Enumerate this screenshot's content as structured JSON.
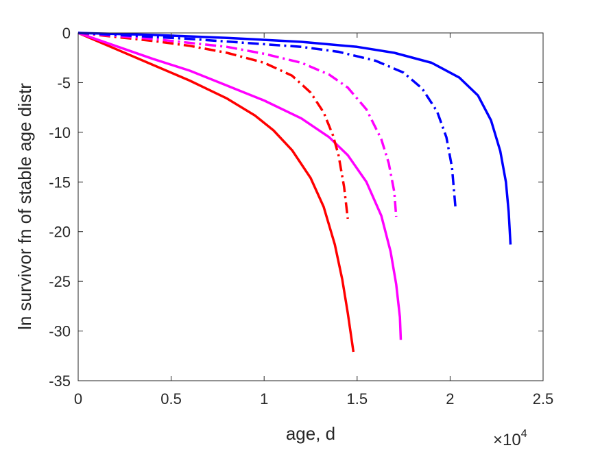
{
  "chart_data": {
    "type": "line",
    "xlabel": "age, d",
    "ylabel": "ln survivor fn of stable age distr",
    "x_exponent_label": {
      "base": "×10",
      "power": "4"
    },
    "xlim": [
      0,
      25000
    ],
    "ylim": [
      -35,
      0
    ],
    "x_ticks": [
      0,
      5000,
      10000,
      15000,
      20000,
      25000
    ],
    "x_tick_labels": [
      "0",
      "0.5",
      "1",
      "1.5",
      "2",
      "2.5"
    ],
    "y_ticks": [
      -35,
      -30,
      -25,
      -20,
      -15,
      -10,
      -5,
      0
    ],
    "y_tick_labels": [
      "-35",
      "-30",
      "-25",
      "-20",
      "-15",
      "-10",
      "-5",
      "0"
    ],
    "grid": false,
    "series": [
      {
        "color": "#ff0000",
        "style": "solid",
        "x": [
          0,
          2000,
          4000,
          6000,
          8000,
          9500,
          10500,
          11500,
          12500,
          13200,
          13800,
          14200,
          14500,
          14700,
          14800
        ],
        "y": [
          0,
          -1.6,
          -3.2,
          -4.8,
          -6.6,
          -8.3,
          -9.8,
          -11.8,
          -14.6,
          -17.5,
          -21.3,
          -24.8,
          -28.2,
          -30.8,
          -32.1
        ]
      },
      {
        "color": "#ff00ff",
        "style": "solid",
        "x": [
          0,
          2000,
          4000,
          6000,
          8000,
          10000,
          12000,
          13500,
          14500,
          15500,
          16300,
          16800,
          17100,
          17300,
          17350
        ],
        "y": [
          0,
          -1.3,
          -2.6,
          -3.8,
          -5.3,
          -6.8,
          -8.6,
          -10.5,
          -12.3,
          -15.0,
          -18.4,
          -22.0,
          -25.3,
          -28.6,
          -30.9
        ]
      },
      {
        "color": "#ff0000",
        "style": "dashdot",
        "x": [
          0,
          2000,
          4000,
          6000,
          8000,
          10000,
          11500,
          12500,
          13200,
          13700,
          14000,
          14300,
          14500
        ],
        "y": [
          0,
          -0.4,
          -0.8,
          -1.3,
          -2.0,
          -3.0,
          -4.3,
          -6.0,
          -8.0,
          -10.3,
          -12.3,
          -15.5,
          -18.7
        ]
      },
      {
        "color": "#ff00ff",
        "style": "dashdot",
        "x": [
          0,
          2000,
          4000,
          6000,
          8000,
          10000,
          12000,
          13500,
          14500,
          15500,
          16300,
          16700,
          17000,
          17100
        ],
        "y": [
          0,
          -0.3,
          -0.6,
          -1.0,
          -1.4,
          -2.1,
          -3.0,
          -4.2,
          -5.5,
          -7.7,
          -10.7,
          -13.1,
          -16.0,
          -18.5
        ]
      },
      {
        "color": "#0000ff",
        "style": "dashdot",
        "x": [
          0,
          3000,
          6000,
          9000,
          12000,
          14000,
          16000,
          17500,
          18500,
          19300,
          19800,
          20100,
          20300
        ],
        "y": [
          0,
          -0.3,
          -0.6,
          -1.0,
          -1.4,
          -1.9,
          -2.8,
          -4.0,
          -5.6,
          -7.9,
          -10.5,
          -13.5,
          -17.8
        ]
      },
      {
        "color": "#0000ff",
        "style": "solid",
        "x": [
          0,
          4000,
          8000,
          12000,
          15000,
          17000,
          19000,
          20500,
          21500,
          22200,
          22700,
          23000,
          23150,
          23250
        ],
        "y": [
          0,
          -0.2,
          -0.5,
          -0.9,
          -1.4,
          -2.0,
          -3.0,
          -4.5,
          -6.3,
          -8.8,
          -11.9,
          -15.0,
          -18.0,
          -21.3
        ]
      }
    ]
  }
}
